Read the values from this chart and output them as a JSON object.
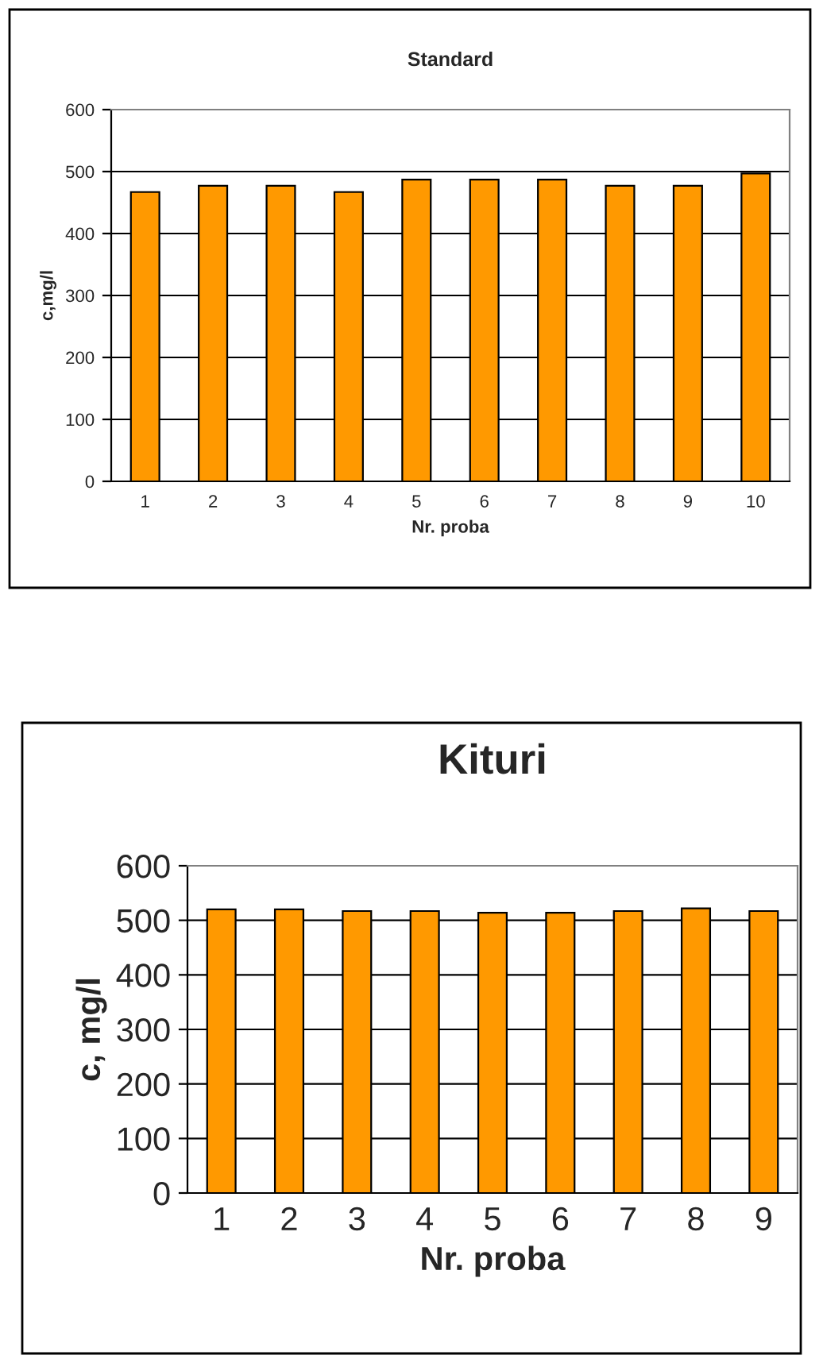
{
  "chart_data": [
    {
      "type": "bar",
      "title": "Standard",
      "xlabel": "Nr. proba",
      "ylabel": "c,mg/l",
      "categories": [
        "1",
        "2",
        "3",
        "4",
        "5",
        "6",
        "7",
        "8",
        "9",
        "10"
      ],
      "values": [
        467,
        477,
        477,
        467,
        487,
        487,
        487,
        477,
        477,
        497
      ],
      "color": "#ff9900",
      "ylim": [
        0,
        600
      ],
      "yticks": [
        0,
        100,
        200,
        300,
        400,
        500,
        600
      ],
      "grid": "y"
    },
    {
      "type": "bar",
      "title": "Kituri",
      "xlabel": "Nr. proba",
      "ylabel": "c, mg/l",
      "categories": [
        "1",
        "2",
        "3",
        "4",
        "5",
        "6",
        "7",
        "8",
        "9"
      ],
      "values": [
        520,
        520,
        517,
        517,
        514,
        514,
        517,
        522,
        517
      ],
      "color": "#ff9900",
      "ylim": [
        0,
        600
      ],
      "yticks": [
        0,
        100,
        200,
        300,
        400,
        500,
        600
      ],
      "grid": "y"
    }
  ]
}
